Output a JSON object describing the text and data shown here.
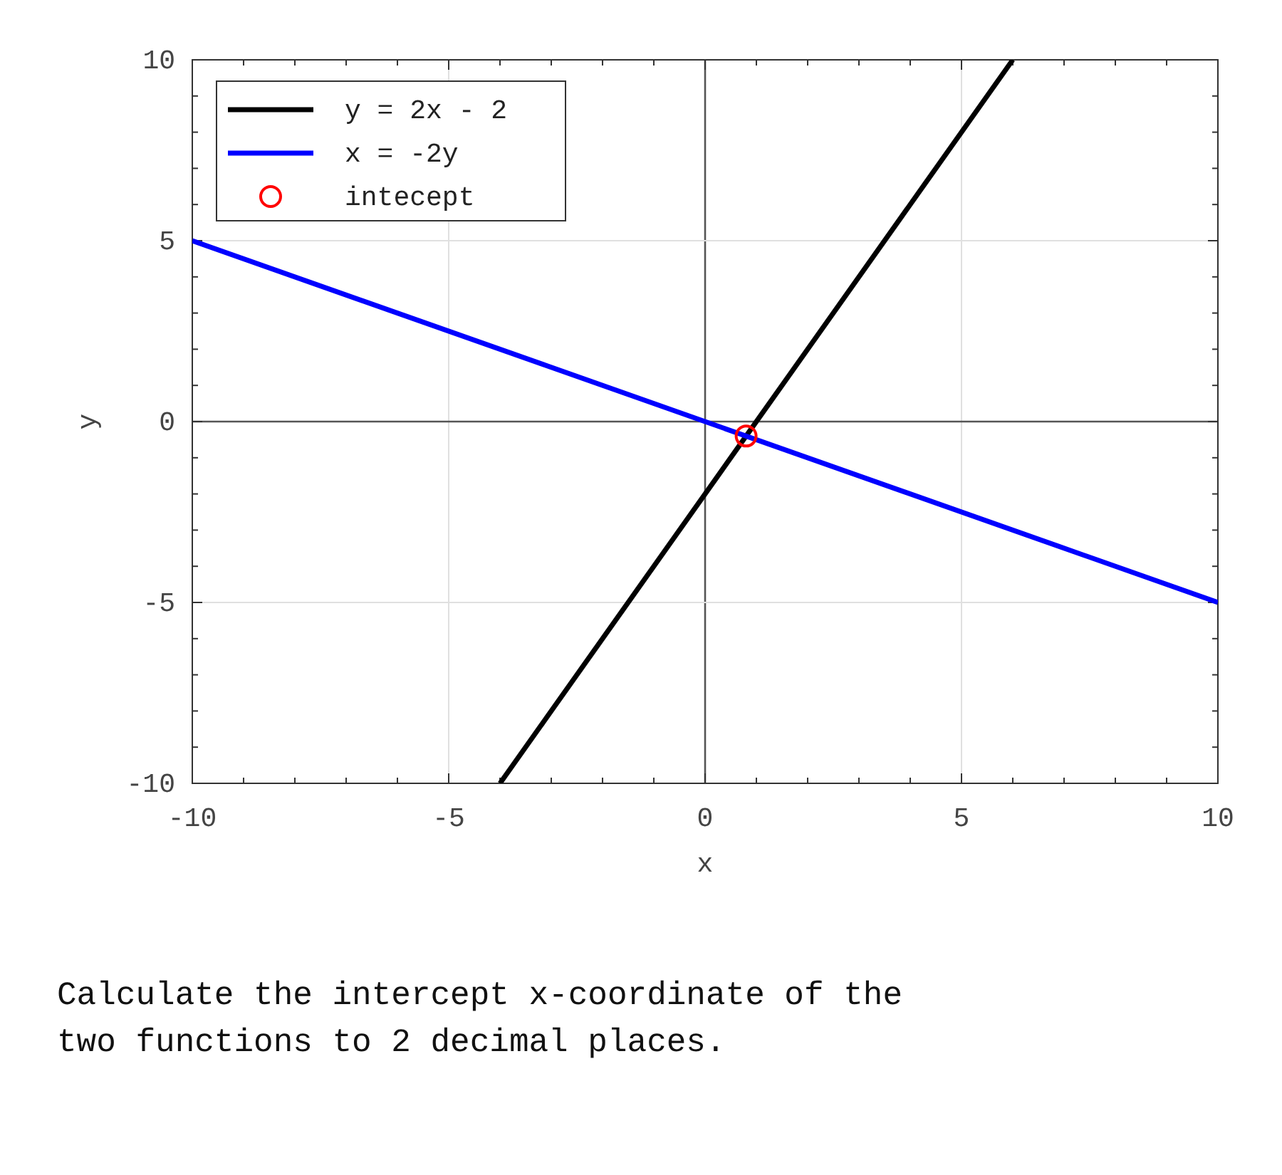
{
  "chart_data": {
    "type": "line",
    "xlabel": "x",
    "ylabel": "y",
    "xlim": [
      -10,
      10
    ],
    "ylim": [
      -10,
      10
    ],
    "xticks": [
      -10,
      {
        "value": -9,
        "label": null
      },
      {
        "value": -8,
        "label": null
      },
      {
        "value": -7,
        "label": null
      },
      {
        "value": -6,
        "label": null
      },
      -5,
      {
        "value": -4,
        "label": null
      },
      {
        "value": -3,
        "label": null
      },
      {
        "value": -2,
        "label": null
      },
      {
        "value": -1,
        "label": null
      },
      0,
      {
        "value": 1,
        "label": null
      },
      {
        "value": 2,
        "label": null
      },
      {
        "value": 3,
        "label": null
      },
      {
        "value": 4,
        "label": null
      },
      5,
      {
        "value": 6,
        "label": null
      },
      {
        "value": 7,
        "label": null
      },
      {
        "value": 8,
        "label": null
      },
      {
        "value": 9,
        "label": null
      },
      10
    ],
    "yticks": [
      -10,
      {
        "value": -9,
        "label": null
      },
      {
        "value": -8,
        "label": null
      },
      {
        "value": -7,
        "label": null
      },
      {
        "value": -6,
        "label": null
      },
      -5,
      {
        "value": -4,
        "label": null
      },
      {
        "value": -3,
        "label": null
      },
      {
        "value": -2,
        "label": null
      },
      {
        "value": -1,
        "label": null
      },
      0,
      {
        "value": 1,
        "label": null
      },
      {
        "value": 2,
        "label": null
      },
      {
        "value": 3,
        "label": null
      },
      {
        "value": 4,
        "label": null
      },
      5,
      {
        "value": 6,
        "label": null
      },
      {
        "value": 7,
        "label": null
      },
      {
        "value": 8,
        "label": null
      },
      {
        "value": 9,
        "label": null
      },
      10
    ],
    "grid": true,
    "legend": "top left",
    "series": [
      {
        "name": "y = 2x - 2",
        "color": "#000000",
        "marker": "none",
        "x": [
          -4,
          6
        ],
        "values": [
          -10,
          10
        ]
      },
      {
        "name": "x = -2y",
        "color": "#0000ff",
        "marker": "none",
        "x": [
          -10,
          10
        ],
        "values": [
          5,
          -5
        ]
      },
      {
        "name": "intecept",
        "type": "scatter",
        "color": "#ff0000",
        "marker": "circle",
        "x": [
          0.8
        ],
        "values": [
          -0.4
        ]
      }
    ],
    "annotations": [
      "Calculate the intercept x-coordinate of the two functions to 2 decimal places."
    ]
  }
}
